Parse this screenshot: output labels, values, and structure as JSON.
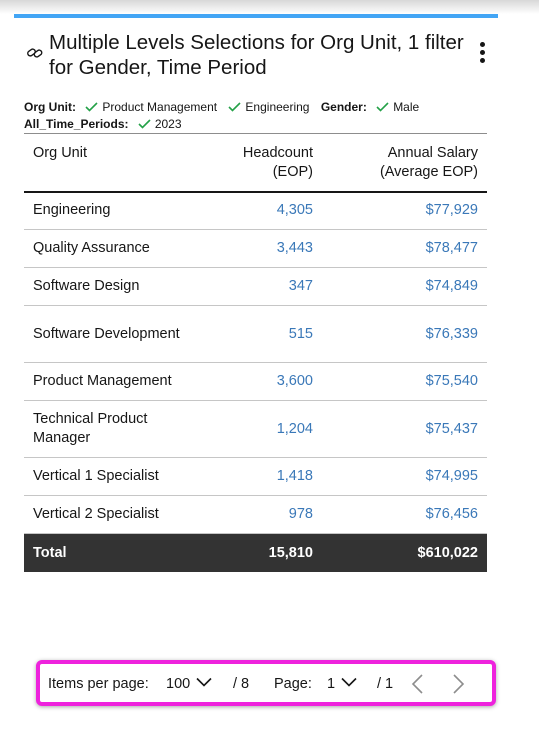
{
  "widget": {
    "title": "Multiple Levels Selections for Org Unit, 1 filter for Gender, Time Period"
  },
  "filters": {
    "org_unit_label": "Org Unit:",
    "org_unit_values": [
      "Product Management",
      "Engineering"
    ],
    "gender_label": "Gender:",
    "gender_value": "Male",
    "time_label": "All_Time_Periods:",
    "time_value": "2023"
  },
  "table": {
    "headers": {
      "org_unit": "Org Unit",
      "headcount": "Headcount (EOP)",
      "salary_line1": "Annual Salary",
      "salary_line2": "(Average EOP)"
    },
    "rows": [
      {
        "org_unit": "Engineering",
        "headcount": "4,305",
        "salary": "$77,929"
      },
      {
        "org_unit": "Quality Assurance",
        "headcount": "3,443",
        "salary": "$78,477"
      },
      {
        "org_unit": "Software Design",
        "headcount": "347",
        "salary": "$74,849"
      },
      {
        "org_unit": "Software Development",
        "headcount": "515",
        "salary": "$76,339"
      },
      {
        "org_unit": "Product Management",
        "headcount": "3,600",
        "salary": "$75,540"
      },
      {
        "org_unit": "Technical Product Manager",
        "headcount": "1,204",
        "salary": "$75,437"
      },
      {
        "org_unit": "Vertical 1 Specialist",
        "headcount": "1,418",
        "salary": "$74,995"
      },
      {
        "org_unit": "Vertical 2 Specialist",
        "headcount": "978",
        "salary": "$76,456"
      }
    ],
    "total": {
      "label": "Total",
      "headcount": "15,810",
      "salary": "$610,022"
    }
  },
  "pagination": {
    "items_per_page_label": "Items per page:",
    "items_per_page_value": "100",
    "total_items": "/ 8",
    "page_label": "Page:",
    "page_value": "1",
    "total_pages": "/ 1"
  },
  "colors": {
    "accent": "#42a5f5",
    "link_value": "#3a78b8",
    "check": "#24a148",
    "total_row": "#333333",
    "highlight": "#ee22dd"
  },
  "icons": [
    "link-icon",
    "kebab-menu-icon",
    "checkmark-icon",
    "chevron-down-icon",
    "chevron-left-icon",
    "chevron-right-icon"
  ]
}
